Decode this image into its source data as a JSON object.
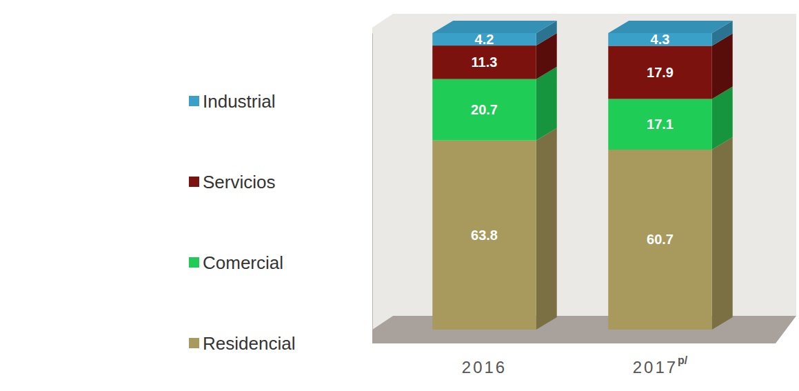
{
  "chart_data": {
    "type": "bar",
    "stacked": true,
    "data_labels": true,
    "tick_labels": "x",
    "legend": "left",
    "categories": [
      "2016",
      "2017p/"
    ],
    "series": [
      {
        "name": "Residencial",
        "color": "#a89a5c",
        "values": [
          63.8,
          60.7
        ]
      },
      {
        "name": "Comercial",
        "color": "#1fcc55",
        "values": [
          20.7,
          17.1
        ]
      },
      {
        "name": "Servicios",
        "color": "#7b120e",
        "values": [
          11.3,
          17.9
        ]
      },
      {
        "name": "Industrial",
        "color": "#3aa0c8",
        "values": [
          4.2,
          4.3
        ]
      }
    ],
    "ylim": [
      0,
      100
    ]
  }
}
